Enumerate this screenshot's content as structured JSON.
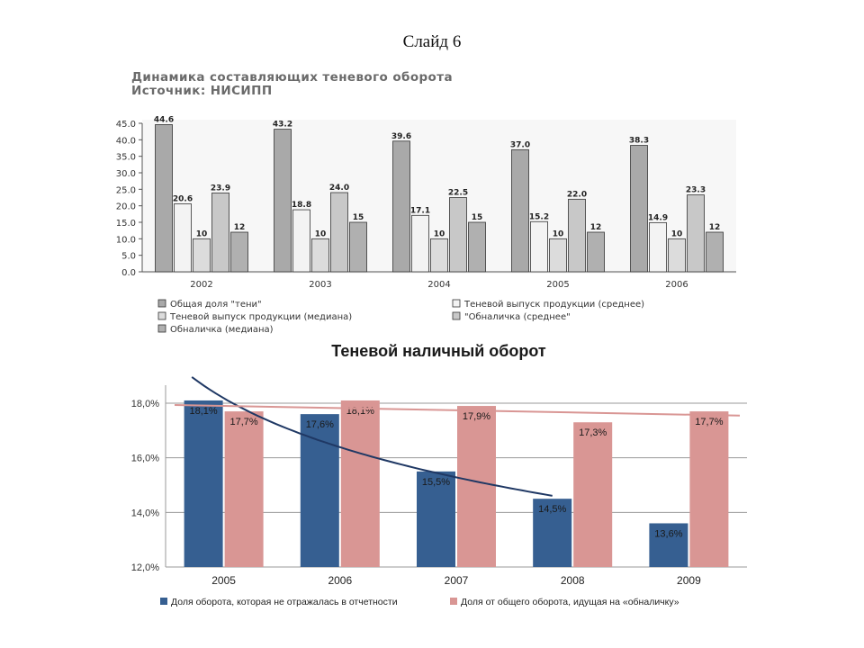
{
  "slide": {
    "title": "Слайд 6"
  },
  "chart1_header": {
    "line1": "Динамика составляющих теневого оборота",
    "line2": "Источник: НИСИПП"
  },
  "chart2_header": {
    "title": "Теневой наличный оборот"
  },
  "chart_data": [
    {
      "type": "bar",
      "categories": [
        "2002",
        "2003",
        "2004",
        "2005",
        "2006"
      ],
      "ylim": [
        0,
        45
      ],
      "yticks": [
        "0.0",
        "5.0",
        "10.0",
        "15.0",
        "20.0",
        "25.0",
        "30.0",
        "35.0",
        "40.0",
        "45.0"
      ],
      "series": [
        {
          "name": "Общая доля \"тени\"",
          "values": [
            44.6,
            43.2,
            39.6,
            37.0,
            38.3
          ],
          "labels": [
            "44.6",
            "43.2",
            "39.6",
            "37.0",
            "38.3"
          ],
          "color": "#a9a9a9"
        },
        {
          "name": "Теневой выпуск продукции (среднее)",
          "values": [
            20.6,
            18.8,
            17.1,
            15.2,
            14.9
          ],
          "labels": [
            "20.6",
            "18.8",
            "17.1",
            "15.2",
            "14.9"
          ],
          "color": "#f3f3f3"
        },
        {
          "name": "Теневой выпуск продукции (медиана)",
          "values": [
            10,
            10,
            10,
            10,
            10
          ],
          "labels": [
            "10",
            "10",
            "10",
            "10",
            "10"
          ],
          "color": "#dcdcdc"
        },
        {
          "name": "\"Обналичка (среднее\"",
          "values": [
            23.9,
            24.0,
            22.5,
            22.0,
            23.3
          ],
          "labels": [
            "23.9",
            "24.0",
            "22.5",
            "22.0",
            "23.3"
          ],
          "color": "#c8c8c8"
        },
        {
          "name": "Обналичка (медиана)",
          "values": [
            12,
            15,
            15,
            12,
            12
          ],
          "labels": [
            "12",
            "15",
            "15",
            "12",
            "12"
          ],
          "color": "#b0b0b0"
        }
      ],
      "legend_order": [
        "Общая доля \"тени\"",
        "Теневой выпуск продукции (среднее)",
        "Теневой выпуск продукции (медиана)",
        "\"Обналичка (среднее\"",
        "Обналичка (медиана)"
      ],
      "grid": false
    },
    {
      "type": "bar",
      "categories": [
        "2005",
        "2006",
        "2007",
        "2008",
        "2009"
      ],
      "ylim": [
        12,
        18
      ],
      "yticks": [
        "12,0%",
        "14,0%",
        "16,0%",
        "18,0%"
      ],
      "series": [
        {
          "name": "Доля оборота, которая не отражалась в отчетности",
          "values": [
            18.1,
            17.6,
            15.5,
            14.5,
            13.6
          ],
          "labels": [
            "18,1%",
            "17,6%",
            "15,5%",
            "14,5%",
            "13,6%"
          ],
          "color": "#365f91"
        },
        {
          "name": "Доля от общего оборота, идущая на «обналичку»",
          "values": [
            17.7,
            18.1,
            17.9,
            17.3,
            17.7
          ],
          "labels": [
            "17,7%",
            "18,1%",
            "17,9%",
            "17,3%",
            "17,7%"
          ],
          "color": "#d99694"
        }
      ],
      "trendlines": [
        {
          "series": "Доля оборота, которая не отражалась в отчетности",
          "kind": "logarithmic",
          "color": "#1f3864"
        },
        {
          "series": "Доля от общего оборота, идущая на «обналичку»",
          "kind": "linear",
          "color": "#d99694"
        }
      ],
      "grid": true,
      "legend_position": "bottom"
    }
  ]
}
